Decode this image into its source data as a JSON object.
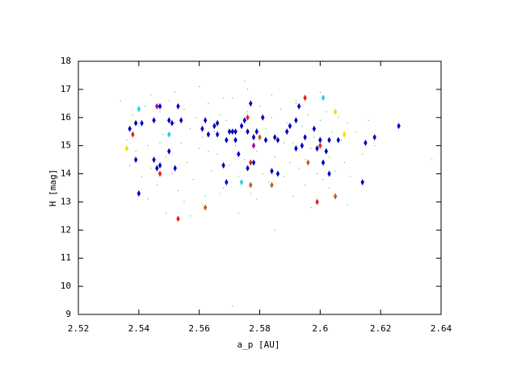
{
  "chart_data": {
    "type": "scatter",
    "x_label": "a_p [AU]",
    "y_label": "H [mag]",
    "xlim": [
      2.52,
      2.64
    ],
    "xticks": [
      2.52,
      2.54,
      2.56,
      2.58,
      2.6,
      2.62,
      2.64
    ],
    "ylim": [
      9,
      18
    ],
    "yticks": [
      9,
      10,
      11,
      12,
      13,
      14,
      15,
      16,
      17,
      18
    ],
    "grid": false,
    "series": [
      {
        "color": "#00c000",
        "marker": "dot",
        "x": [
          2.536,
          2.538,
          2.539,
          2.54,
          2.541,
          2.542,
          2.543,
          2.544,
          2.545,
          2.546,
          2.547,
          2.548,
          2.549,
          2.55,
          2.551,
          2.552,
          2.553,
          2.554,
          2.555,
          2.556,
          2.557,
          2.558,
          2.559,
          2.56,
          2.561,
          2.562,
          2.563,
          2.564,
          2.565,
          2.566,
          2.567,
          2.568,
          2.569,
          2.57,
          2.571,
          2.572,
          2.573,
          2.574,
          2.575,
          2.576,
          2.577,
          2.578,
          2.579,
          2.58,
          2.581,
          2.582,
          2.583,
          2.584,
          2.585,
          2.586,
          2.587,
          2.588,
          2.589,
          2.59,
          2.591,
          2.592,
          2.593,
          2.594,
          2.595,
          2.596,
          2.597,
          2.598,
          2.599,
          2.6,
          2.601,
          2.602,
          2.603,
          2.604,
          2.605,
          2.606,
          2.607,
          2.608,
          2.609,
          2.61,
          2.612,
          2.614,
          2.616,
          2.618,
          2.537,
          2.543,
          2.549,
          2.555,
          2.561,
          2.567,
          2.573,
          2.579,
          2.585,
          2.591,
          2.597,
          2.603,
          2.609,
          2.544,
          2.552,
          2.56,
          2.568,
          2.576,
          2.584,
          2.592,
          2.6,
          2.547,
          2.563,
          2.579,
          2.595,
          2.534,
          2.637,
          2.571,
          2.52,
          2.557,
          2.588,
          2.575
        ],
        "values": [
          15.2,
          16.1,
          14.8,
          15.7,
          13.9,
          16.4,
          15.0,
          14.2,
          15.9,
          13.6,
          16.2,
          15.4,
          14.6,
          16.6,
          14.0,
          15.8,
          13.4,
          15.1,
          16.3,
          14.4,
          15.6,
          13.8,
          16.0,
          14.9,
          15.3,
          13.2,
          16.5,
          14.1,
          15.5,
          14.7,
          16.1,
          13.5,
          15.9,
          14.3,
          16.7,
          15.0,
          13.9,
          15.7,
          14.5,
          16.2,
          13.3,
          15.4,
          14.8,
          16.4,
          14.0,
          15.6,
          13.7,
          16.0,
          14.6,
          15.2,
          16.3,
          13.9,
          15.8,
          14.4,
          15.1,
          16.5,
          14.2,
          15.7,
          13.6,
          16.1,
          14.9,
          15.3,
          14.0,
          15.9,
          13.8,
          16.2,
          14.6,
          15.5,
          14.1,
          16.0,
          15.2,
          14.4,
          15.8,
          13.9,
          15.5,
          14.7,
          15.9,
          15.0,
          14.3,
          13.1,
          12.6,
          13.0,
          12.9,
          13.3,
          12.6,
          13.1,
          12.0,
          13.2,
          12.8,
          13.5,
          12.9,
          16.8,
          16.9,
          17.1,
          16.7,
          17.0,
          16.8,
          16.6,
          16.9,
          15.1,
          14.8,
          15.6,
          14.5,
          16.6,
          14.5,
          9.3,
          9.05,
          12.5,
          15.1,
          17.3
        ]
      },
      {
        "color": "#0000c0",
        "marker": "diamond",
        "x": [
          2.537,
          2.539,
          2.541,
          2.54,
          2.539,
          2.545,
          2.545,
          2.546,
          2.547,
          2.547,
          2.55,
          2.551,
          2.55,
          2.552,
          2.553,
          2.554,
          2.561,
          2.562,
          2.563,
          2.565,
          2.566,
          2.566,
          2.568,
          2.569,
          2.57,
          2.571,
          2.572,
          2.572,
          2.569,
          2.574,
          2.573,
          2.575,
          2.576,
          2.576,
          2.577,
          2.578,
          2.578,
          2.579,
          2.581,
          2.582,
          2.584,
          2.585,
          2.586,
          2.586,
          2.589,
          2.59,
          2.592,
          2.592,
          2.593,
          2.594,
          2.595,
          2.598,
          2.599,
          2.6,
          2.601,
          2.602,
          2.603,
          2.603,
          2.606,
          2.614,
          2.618,
          2.626,
          2.615
        ],
        "values": [
          15.6,
          15.8,
          15.8,
          13.3,
          14.5,
          15.9,
          14.5,
          14.2,
          14.3,
          16.4,
          15.9,
          15.8,
          14.8,
          14.2,
          16.4,
          15.9,
          15.6,
          15.9,
          15.4,
          15.7,
          15.8,
          15.4,
          14.3,
          15.2,
          15.5,
          15.5,
          15.5,
          15.2,
          13.7,
          15.7,
          14.7,
          15.9,
          15.5,
          14.2,
          16.5,
          15.3,
          14.4,
          15.5,
          16.0,
          15.2,
          14.1,
          15.3,
          15.2,
          14.0,
          15.5,
          15.7,
          15.9,
          14.9,
          16.4,
          15.0,
          15.3,
          15.6,
          14.9,
          15.2,
          14.4,
          14.8,
          15.2,
          14.0,
          15.2,
          13.7,
          15.3,
          15.7,
          15.1
        ]
      },
      {
        "color": "#e02020",
        "marker": "diamond",
        "x": [
          2.538,
          2.547,
          2.553,
          2.577,
          2.595,
          2.599,
          2.6,
          2.576
        ],
        "values": [
          15.4,
          14.0,
          12.4,
          14.4,
          16.7,
          13.0,
          15.0,
          16.0
        ]
      },
      {
        "color": "#c06020",
        "marker": "diamond",
        "x": [
          2.605,
          2.562,
          2.577,
          2.584,
          2.596,
          2.58
        ],
        "values": [
          13.2,
          12.8,
          13.6,
          13.6,
          14.4,
          15.3
        ]
      },
      {
        "color": "#20d0e0",
        "marker": "diamond",
        "x": [
          2.54,
          2.55,
          2.574,
          2.601
        ],
        "values": [
          16.3,
          15.4,
          13.7,
          16.7
        ]
      },
      {
        "color": "#f0e000",
        "marker": "diamond",
        "x": [
          2.536,
          2.605,
          2.608
        ],
        "values": [
          14.9,
          16.2,
          15.4
        ]
      },
      {
        "color": "#a000a0",
        "marker": "diamond",
        "x": [
          2.546,
          2.578
        ],
        "values": [
          16.4,
          15.0
        ]
      }
    ]
  }
}
